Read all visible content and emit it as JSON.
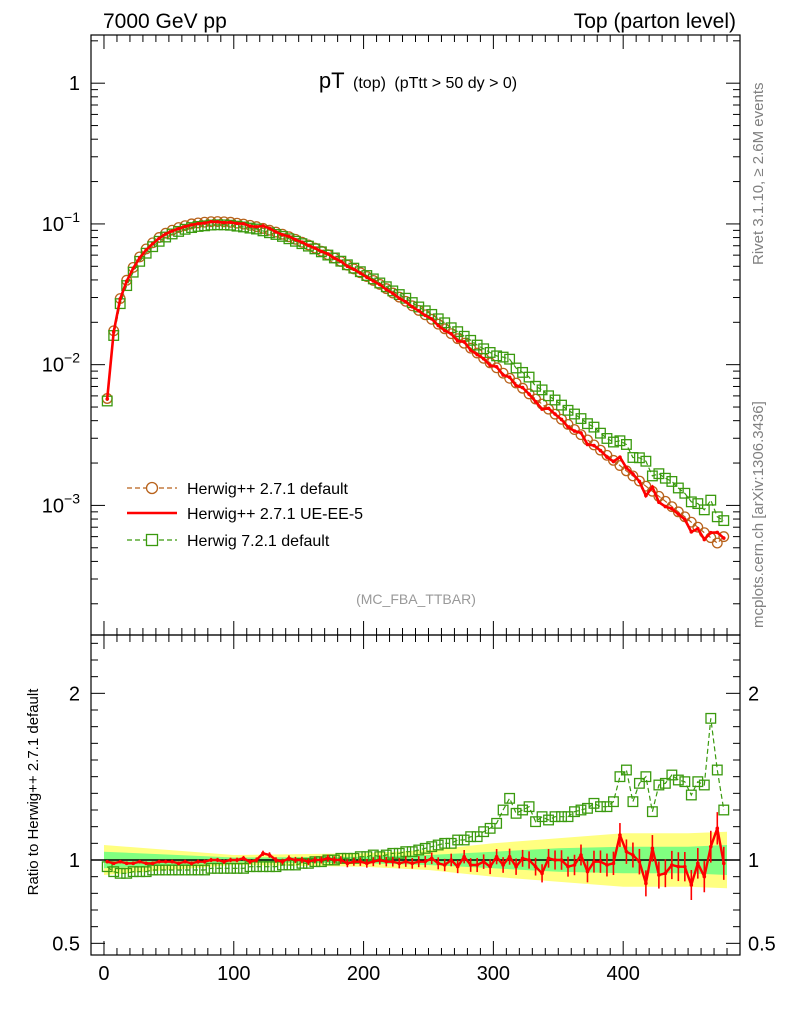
{
  "header": {
    "left": "7000 GeV pp",
    "right": "Top (parton level)"
  },
  "plot_title": {
    "main": "pT",
    "paren": "(top)",
    "cut": "(pTtt > 50 dy > 0)"
  },
  "analysis_tag": "(MC_FBA_TTBAR)",
  "side_text": {
    "rivet": "Rivet 3.1.10, ≥ 2.6M events",
    "site": "mcplots.cern.ch [arXiv:1306.3436]"
  },
  "colors": {
    "herwigpp_default": "#b8621b",
    "herwigpp_ueee5": "#ff0000",
    "herwig7": "#3a9a0e",
    "band_yellow": "#ffff80",
    "band_green": "#80ff80"
  },
  "chart_data": [
    {
      "type": "line",
      "panel": "main",
      "title": "pT (top) (pTtt > 50 dy > 0)",
      "xlabel": "",
      "ylabel": "",
      "xlim": [
        -10,
        490
      ],
      "ylim": [
        0.00012,
        2.2
      ],
      "yscale": "log",
      "y_ticks": [
        {
          "value": 1,
          "base": "1",
          "exp": ""
        },
        {
          "value": 0.1,
          "base": "10",
          "exp": "−1"
        },
        {
          "value": 0.01,
          "base": "10",
          "exp": "−2"
        },
        {
          "value": 0.001,
          "base": "10",
          "exp": "−3"
        }
      ],
      "legend_position": "bottom-left",
      "legend": [
        {
          "label": "Herwig++ 2.7.1 default",
          "style": "circle-dashed"
        },
        {
          "label": "Herwig++ 2.7.1 UE-EE-5",
          "style": "solid"
        },
        {
          "label": "Herwig 7.2.1 default",
          "style": "square-dashed"
        }
      ],
      "x": [
        2.5,
        7.5,
        12.5,
        17.5,
        22.5,
        27.5,
        32.5,
        37.5,
        42.5,
        47.5,
        52.5,
        57.5,
        62.5,
        67.5,
        72.5,
        77.5,
        82.5,
        87.5,
        92.5,
        97.5,
        102.5,
        107.5,
        112.5,
        117.5,
        122.5,
        127.5,
        132.5,
        137.5,
        142.5,
        147.5,
        152.5,
        157.5,
        162.5,
        167.5,
        172.5,
        177.5,
        182.5,
        187.5,
        192.5,
        197.5,
        202.5,
        207.5,
        212.5,
        217.5,
        222.5,
        227.5,
        232.5,
        237.5,
        242.5,
        247.5,
        252.5,
        257.5,
        262.5,
        267.5,
        272.5,
        277.5,
        282.5,
        287.5,
        292.5,
        297.5,
        302.5,
        307.5,
        312.5,
        317.5,
        322.5,
        327.5,
        332.5,
        337.5,
        342.5,
        347.5,
        352.5,
        357.5,
        362.5,
        367.5,
        372.5,
        377.5,
        382.5,
        387.5,
        392.5,
        397.5,
        402.5,
        407.5,
        412.5,
        417.5,
        422.5,
        427.5,
        432.5,
        437.5,
        442.5,
        447.5,
        452.5,
        457.5,
        462.5,
        467.5,
        472.5,
        477.5
      ],
      "series": [
        {
          "name": "Herwig++ 2.7.1 default",
          "values": [
            0.00575,
            0.0174,
            0.0295,
            0.0398,
            0.0491,
            0.0583,
            0.0664,
            0.0734,
            0.0801,
            0.0859,
            0.0903,
            0.0942,
            0.0972,
            0.1001,
            0.1017,
            0.1029,
            0.1037,
            0.104,
            0.1036,
            0.1028,
            0.1013,
            0.0998,
            0.0978,
            0.0957,
            0.093,
            0.0902,
            0.0875,
            0.0845,
            0.0811,
            0.0778,
            0.0742,
            0.0709,
            0.0674,
            0.064,
            0.0604,
            0.0572,
            0.0541,
            0.0509,
            0.0479,
            0.045,
            0.0423,
            0.0397,
            0.0372,
            0.0347,
            0.0323,
            0.0302,
            0.0282,
            0.0262,
            0.0243,
            0.0226,
            0.021,
            0.0194,
            0.018,
            0.0166,
            0.0153,
            0.0142,
            0.0131,
            0.0121,
            0.0111,
            0.0103,
            0.0095,
            0.0087,
            0.008,
            0.0074,
            0.0068,
            0.0062,
            0.0057,
            0.00525,
            0.00483,
            0.00445,
            0.00409,
            0.00376,
            0.00346,
            0.00318,
            0.00292,
            0.00269,
            0.00247,
            0.00227,
            0.00209,
            0.00192,
            0.00176,
            0.00162,
            0.00149,
            0.00137,
            0.00126,
            0.00116,
            0.00107,
            0.00098,
            0.0009,
            0.00083,
            0.00076,
            0.0007,
            0.00064,
            0.00059,
            0.00054,
            0.0006
          ]
        },
        {
          "name": "Herwig++ 2.7.1 UE-EE-5",
          "values": [
            0.0057,
            0.01711,
            0.02934,
            0.03916,
            0.04837,
            0.05748,
            0.06539,
            0.0723,
            0.07906,
            0.08478,
            0.08904,
            0.09251,
            0.09584,
            0.09847,
            0.1004,
            0.1014,
            0.1038,
            0.1035,
            0.1021,
            0.1027,
            0.1009,
            0.1003,
            0.09652,
            0.09548,
            0.09674,
            0.09316,
            0.08764,
            0.08369,
            0.08151,
            0.07727,
            0.07413,
            0.07035,
            0.06733,
            0.06376,
            0.0612,
            0.05713,
            0.05423,
            0.05003,
            0.04764,
            0.04474,
            0.04181,
            0.03932,
            0.03705,
            0.03423,
            0.03213,
            0.02963,
            0.02798,
            0.02575,
            0.02415,
            0.0224,
            0.02115,
            0.01898,
            0.01748,
            0.01658,
            0.01474,
            0.01453,
            0.01268,
            0.01179,
            0.01102,
            0.009885,
            0.00966,
            0.008441,
            0.008146,
            0.007104,
            0.006874,
            0.006182,
            0.005468,
            0.004835,
            0.004891,
            0.004457,
            0.004079,
            0.003606,
            0.003373,
            0.003274,
            0.002711,
            0.002664,
            0.002451,
            0.002203,
            0.00205,
            0.002203,
            0.001848,
            0.001674,
            0.001481,
            0.001173,
            0.001349,
            0.001054,
            0.000981,
            0.000947,
            0.000868,
            0.000795,
            0.000648,
            0.000683,
            0.000573,
            0.00064,
            0.000643,
            0.000586
          ]
        },
        {
          "name": "Herwig 7.2.1 default",
          "values": [
            0.00552,
            0.01612,
            0.02714,
            0.03646,
            0.04542,
            0.05422,
            0.06194,
            0.06892,
            0.07526,
            0.08072,
            0.08487,
            0.08847,
            0.0916,
            0.09419,
            0.09597,
            0.09697,
            0.09818,
            0.09859,
            0.09846,
            0.0979,
            0.09645,
            0.09514,
            0.0934,
            0.09198,
            0.08928,
            0.08659,
            0.08418,
            0.08156,
            0.07845,
            0.07531,
            0.07241,
            0.06956,
            0.06651,
            0.06336,
            0.06009,
            0.05731,
            0.05437,
            0.05126,
            0.04852,
            0.04577,
            0.04299,
            0.04069,
            0.03806,
            0.03578,
            0.03343,
            0.03149,
            0.02966,
            0.02762,
            0.02571,
            0.02415,
            0.02276,
            0.02118,
            0.01984,
            0.01829,
            0.01716,
            0.01591,
            0.01489,
            0.01378,
            0.01297,
            0.01221,
            0.01155,
            0.01132,
            0.01094,
            0.00947,
            0.00881,
            0.00816,
            0.00702,
            0.00662,
            0.00601,
            0.00561,
            0.00516,
            0.00474,
            0.00446,
            0.00414,
            0.00381,
            0.0036,
            0.00326,
            0.00299,
            0.00282,
            0.00288,
            0.00271,
            0.00219,
            0.00218,
            0.00206,
            0.00162,
            0.00168,
            0.00156,
            0.00148,
            0.00133,
            0.00122,
            0.00106,
            0.00103,
            0.00093,
            0.00109,
            0.00083,
            0.00078
          ]
        }
      ]
    },
    {
      "type": "line",
      "panel": "ratio",
      "xlabel": "",
      "ylabel": "Ratio to Herwig++ 2.7.1 default",
      "xlim": [
        -10,
        490
      ],
      "ylim": [
        0.43,
        2.35
      ],
      "y_ticks": [
        {
          "value": 2,
          "label": "2"
        },
        {
          "value": 1,
          "label": "1"
        },
        {
          "value": 0.5,
          "label": "0.5"
        }
      ],
      "x_ticks": [
        {
          "value": 0,
          "label": "0"
        },
        {
          "value": 100,
          "label": "100"
        },
        {
          "value": 200,
          "label": "200"
        },
        {
          "value": 300,
          "label": "300"
        },
        {
          "value": 400,
          "label": "400"
        }
      ],
      "bands": {
        "x": [
          0,
          100,
          200,
          250,
          300,
          350,
          400,
          450,
          480
        ],
        "yellow_halfwidth": [
          0.09,
          0.03,
          0.04,
          0.06,
          0.1,
          0.13,
          0.16,
          0.16,
          0.17
        ],
        "green_halfwidth": [
          0.05,
          0.015,
          0.02,
          0.03,
          0.05,
          0.07,
          0.08,
          0.08,
          0.09
        ]
      },
      "series": [
        {
          "name": "Herwig++ 2.7.1 UE-EE-5",
          "values": [
            0.99,
            0.98,
            0.99,
            0.98,
            0.98,
            0.99,
            0.98,
            0.98,
            0.99,
            0.99,
            0.99,
            0.98,
            0.99,
            0.98,
            0.99,
            0.99,
            1.0,
            1.0,
            0.99,
            1.0,
            1.0,
            1.01,
            0.99,
            1.0,
            1.04,
            1.03,
            1.0,
            0.99,
            1.01,
            1.0,
            1.0,
            0.99,
            1.0,
            1.0,
            1.01,
            1.0,
            1.0,
            0.98,
            0.99,
            0.99,
            0.98,
            0.99,
            1.0,
            0.99,
            0.99,
            0.98,
            0.99,
            0.98,
            0.99,
            0.99,
            1.01,
            0.98,
            0.97,
            1.0,
            0.96,
            1.02,
            0.97,
            0.97,
            0.99,
            0.96,
            1.02,
            0.97,
            1.02,
            0.96,
            1.01,
            1.0,
            0.96,
            0.92,
            1.01,
            1.0,
            1.0,
            0.96,
            0.97,
            1.03,
            0.93,
            0.99,
            0.99,
            0.97,
            0.98,
            1.15,
            1.05,
            1.03,
            0.99,
            0.86,
            1.07,
            0.91,
            0.92,
            0.97,
            0.96,
            0.96,
            0.85,
            0.98,
            0.9,
            1.08,
            1.19,
            0.98
          ]
        },
        {
          "name": "Herwig 7.2.1 default",
          "values": [
            0.96,
            0.93,
            0.92,
            0.92,
            0.93,
            0.93,
            0.93,
            0.94,
            0.94,
            0.94,
            0.94,
            0.94,
            0.94,
            0.94,
            0.94,
            0.94,
            0.95,
            0.95,
            0.95,
            0.95,
            0.95,
            0.95,
            0.96,
            0.96,
            0.96,
            0.96,
            0.96,
            0.97,
            0.97,
            0.97,
            0.98,
            0.98,
            0.99,
            0.99,
            1.0,
            1.0,
            1.01,
            1.01,
            1.01,
            1.02,
            1.02,
            1.03,
            1.02,
            1.03,
            1.04,
            1.04,
            1.05,
            1.05,
            1.06,
            1.07,
            1.08,
            1.09,
            1.1,
            1.1,
            1.12,
            1.12,
            1.14,
            1.14,
            1.17,
            1.19,
            1.22,
            1.3,
            1.37,
            1.28,
            1.3,
            1.32,
            1.23,
            1.26,
            1.24,
            1.26,
            1.26,
            1.26,
            1.29,
            1.3,
            1.31,
            1.34,
            1.32,
            1.32,
            1.35,
            1.5,
            1.54,
            1.35,
            1.46,
            1.5,
            1.29,
            1.45,
            1.46,
            1.51,
            1.48,
            1.47,
            1.39,
            1.47,
            1.45,
            1.85,
            1.54,
            1.3
          ]
        }
      ]
    }
  ]
}
